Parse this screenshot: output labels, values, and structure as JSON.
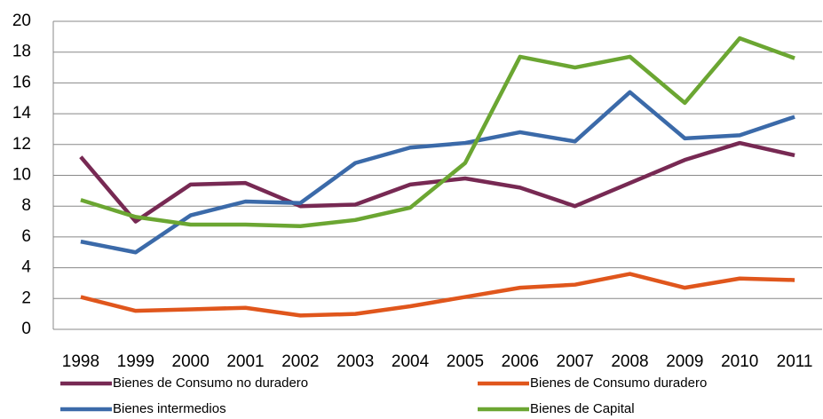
{
  "chart_data": {
    "type": "line",
    "categories": [
      "1998",
      "1999",
      "2000",
      "2001",
      "2002",
      "2003",
      "2004",
      "2005",
      "2006",
      "2007",
      "2008",
      "2009",
      "2010",
      "2011"
    ],
    "series": [
      {
        "name": "Bienes de Consumo no duradero",
        "color": "#772953",
        "values": [
          11.2,
          7.0,
          9.4,
          9.5,
          8.0,
          8.1,
          9.4,
          9.8,
          9.2,
          8.0,
          9.5,
          11.0,
          12.1,
          11.3
        ]
      },
      {
        "name": "Bienes de Consumo duradero",
        "color": "#e0561c",
        "values": [
          2.1,
          1.2,
          1.3,
          1.4,
          0.9,
          1.0,
          1.5,
          2.1,
          2.7,
          2.9,
          3.6,
          2.7,
          3.3,
          3.2
        ]
      },
      {
        "name": "Bienes intermedios",
        "color": "#3b6aa9",
        "values": [
          5.7,
          5.0,
          7.4,
          8.3,
          8.2,
          10.8,
          11.8,
          12.1,
          12.8,
          12.2,
          15.4,
          12.4,
          12.6,
          13.8
        ]
      },
      {
        "name": "Bienes de Capital",
        "color": "#6ba632",
        "values": [
          8.4,
          7.3,
          6.8,
          6.8,
          6.7,
          7.1,
          7.9,
          10.8,
          17.7,
          17.0,
          17.7,
          14.7,
          18.9,
          17.6
        ]
      }
    ],
    "ylim": [
      0,
      20
    ],
    "yticks": [
      0,
      2,
      4,
      6,
      8,
      10,
      12,
      14,
      16,
      18,
      20
    ],
    "grid": true
  }
}
